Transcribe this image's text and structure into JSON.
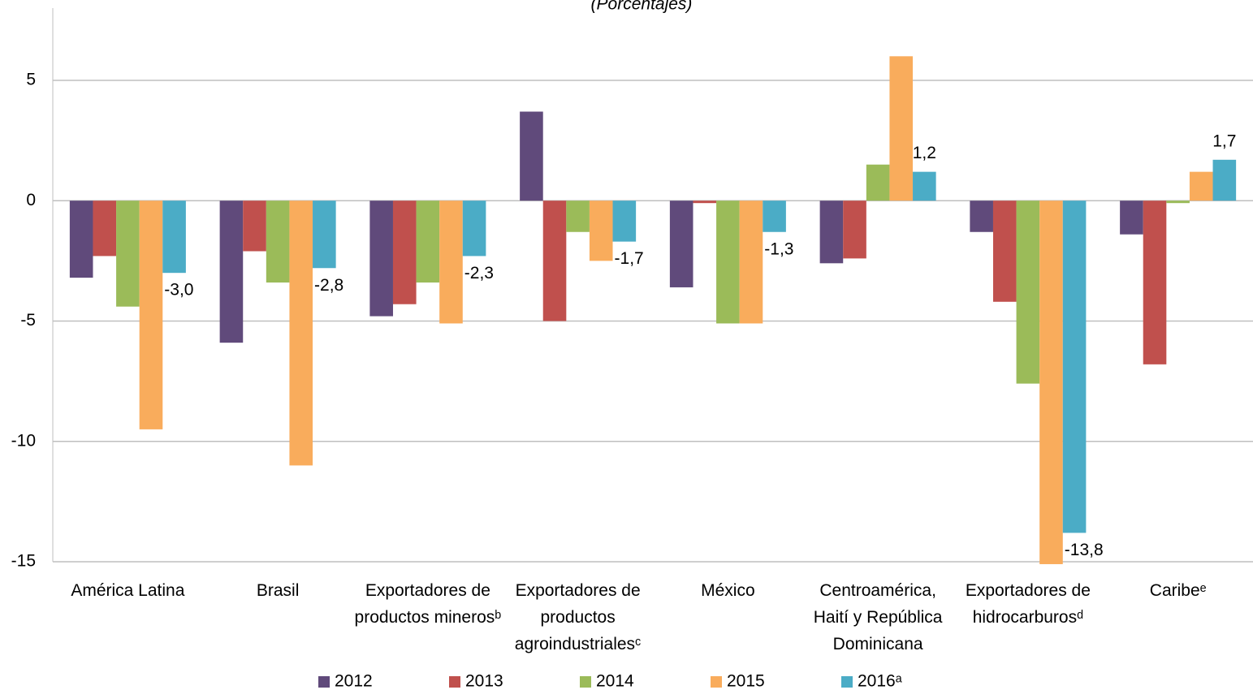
{
  "chart_data": {
    "type": "bar",
    "subtitle": "(Porcentajes)",
    "categories": [
      "América Latina",
      "Brasil",
      "Exportadores de productos minerosᵇ",
      "Exportadores de productos agroindustrialesᶜ",
      "México",
      "Centroamérica, Haití y República Dominicana",
      "Exportadores de hidrocarburosᵈ",
      "Caribeᵉ"
    ],
    "series": [
      {
        "name": "2012",
        "color": "#604a7b",
        "values": [
          -3.2,
          -5.9,
          -4.8,
          3.7,
          -3.6,
          -2.6,
          -1.3,
          -1.4
        ]
      },
      {
        "name": "2013",
        "color": "#c0504d",
        "values": [
          -2.3,
          -2.1,
          -4.3,
          -5.0,
          -0.1,
          -2.4,
          -4.2,
          -6.8
        ]
      },
      {
        "name": "2014",
        "color": "#9bbb59",
        "values": [
          -4.4,
          -3.4,
          -3.4,
          -1.3,
          -5.1,
          1.5,
          -7.6,
          -0.1
        ]
      },
      {
        "name": "2015",
        "color": "#f9ac5c",
        "values": [
          -9.5,
          -11.0,
          -5.1,
          -2.5,
          -5.1,
          6.0,
          -15.1,
          1.2
        ]
      },
      {
        "name": "2016ᵃ",
        "color": "#4bacc6",
        "values": [
          -3.0,
          -2.8,
          -2.3,
          -1.7,
          -1.3,
          1.2,
          -13.8,
          1.7
        ],
        "value_labels": [
          "-3,0",
          "-2,8",
          "-2,3",
          "-1,7",
          "-1,3",
          "1,2",
          "-13,8",
          "1,7"
        ]
      }
    ],
    "ylim": [
      -15,
      8
    ],
    "yticks": [
      5,
      0,
      -5,
      -10,
      -15
    ],
    "grid": true,
    "legend": "bottom"
  }
}
